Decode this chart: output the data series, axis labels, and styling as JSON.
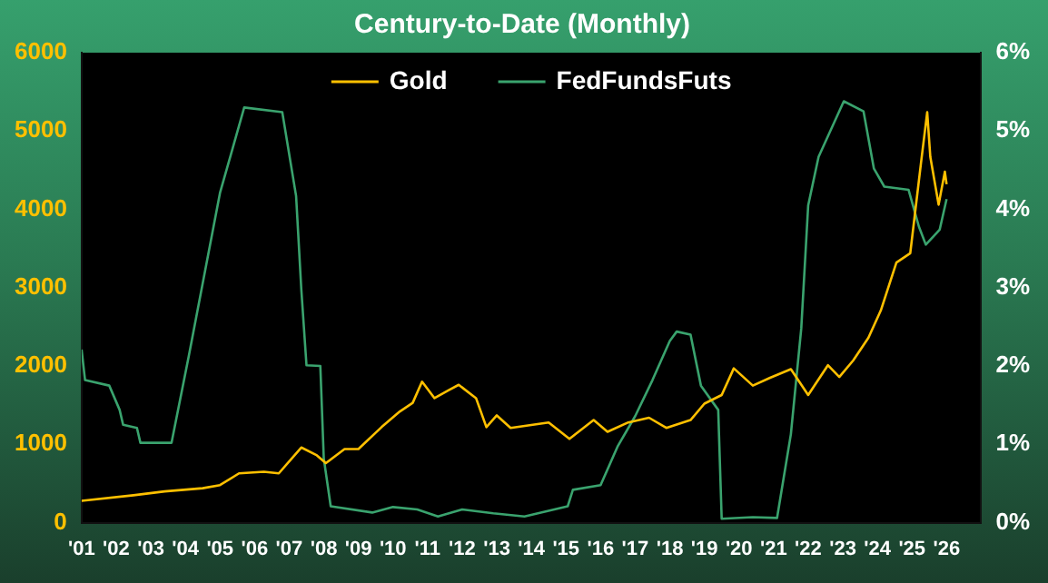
{
  "chart_data": {
    "type": "line",
    "title": "Century-to-Date (Monthly)",
    "marker": "none",
    "legend": "top",
    "xlim": [
      2001,
      2027
    ],
    "xticks": [
      {
        "value": 2001,
        "label": "'01"
      },
      {
        "value": 2002,
        "label": "'02"
      },
      {
        "value": 2003,
        "label": "'03"
      },
      {
        "value": 2004,
        "label": "'04"
      },
      {
        "value": 2005,
        "label": "'05"
      },
      {
        "value": 2006,
        "label": "'06"
      },
      {
        "value": 2007,
        "label": "'07"
      },
      {
        "value": 2008,
        "label": "'08"
      },
      {
        "value": 2009,
        "label": "'09"
      },
      {
        "value": 2010,
        "label": "'10"
      },
      {
        "value": 2011,
        "label": "'11"
      },
      {
        "value": 2012,
        "label": "'12"
      },
      {
        "value": 2013,
        "label": "'13"
      },
      {
        "value": 2014,
        "label": "'14"
      },
      {
        "value": 2015,
        "label": "'15"
      },
      {
        "value": 2016,
        "label": "'16"
      },
      {
        "value": 2017,
        "label": "'17"
      },
      {
        "value": 2018,
        "label": "'18"
      },
      {
        "value": 2019,
        "label": "'19"
      },
      {
        "value": 2020,
        "label": "'20"
      },
      {
        "value": 2021,
        "label": "'21"
      },
      {
        "value": 2022,
        "label": "'22"
      },
      {
        "value": 2023,
        "label": "'23"
      },
      {
        "value": 2024,
        "label": "'24"
      },
      {
        "value": 2025,
        "label": "'25"
      },
      {
        "value": 2026,
        "label": "'26"
      }
    ],
    "ylim": [
      0,
      6000
    ],
    "yticks": [
      0,
      1000,
      2000,
      3000,
      4000,
      5000,
      6000
    ],
    "y2lim": [
      0,
      6
    ],
    "y2ticks": [
      {
        "value": 0,
        "label": "0%"
      },
      {
        "value": 1,
        "label": "1%"
      },
      {
        "value": 2,
        "label": "2%"
      },
      {
        "value": 3,
        "label": "3%"
      },
      {
        "value": 4,
        "label": "4%"
      },
      {
        "value": 5,
        "label": "5%"
      },
      {
        "value": 6,
        "label": "6%"
      }
    ],
    "series": [
      {
        "name": "Gold",
        "color": "#ffc000",
        "x": [
          2001.0,
          2002.5,
          2003.4,
          2004.5,
          2005.0,
          2005.55,
          2006.27,
          2006.7,
          2007.35,
          2007.8,
          2008.06,
          2008.6,
          2009.0,
          2009.67,
          2010.2,
          2010.57,
          2010.84,
          2011.2,
          2011.6,
          2011.9,
          2012.4,
          2012.7,
          2013.0,
          2013.4,
          2014.5,
          2015.1,
          2015.8,
          2016.2,
          2016.8,
          2017.4,
          2017.9,
          2018.6,
          2019.0,
          2019.5,
          2019.85,
          2020.4,
          2020.9,
          2021.5,
          2022.0,
          2022.57,
          2022.9,
          2023.3,
          2023.74,
          2024.1,
          2024.55,
          2024.95,
          2025.26,
          2025.44,
          2025.53,
          2025.77,
          2025.95,
          2026.0
        ],
        "values": [
          280,
          350,
          400,
          440,
          480,
          630,
          650,
          630,
          960,
          860,
          760,
          940,
          940,
          1220,
          1420,
          1530,
          1800,
          1590,
          1690,
          1760,
          1590,
          1220,
          1370,
          1210,
          1280,
          1070,
          1310,
          1160,
          1280,
          1340,
          1210,
          1310,
          1520,
          1630,
          1970,
          1750,
          1850,
          1960,
          1630,
          2010,
          1860,
          2070,
          2360,
          2710,
          3320,
          3440,
          4590,
          5240,
          4670,
          4060,
          4480,
          4320
        ]
      },
      {
        "name": "FedFundsFuts",
        "color": "#3aa36e",
        "axis": "y2",
        "x": [
          2001.0,
          2001.1,
          2001.8,
          2002.1,
          2002.2,
          2002.6,
          2002.7,
          2003.6,
          2004.1,
          2005.0,
          2005.7,
          2006.8,
          2007.2,
          2007.35,
          2007.5,
          2007.9,
          2008.0,
          2008.2,
          2009.4,
          2010.0,
          2010.7,
          2011.3,
          2012.0,
          2012.9,
          2013.8,
          2015.05,
          2015.2,
          2016.0,
          2016.5,
          2017.0,
          2017.5,
          2018.0,
          2018.2,
          2018.6,
          2018.9,
          2019.4,
          2019.5,
          2020.4,
          2021.1,
          2021.5,
          2021.8,
          2022.0,
          2022.3,
          2023.03,
          2023.6,
          2023.9,
          2024.2,
          2024.9,
          2025.2,
          2025.4,
          2025.8,
          2026.0
        ],
        "values": [
          2.21,
          1.82,
          1.75,
          1.44,
          1.25,
          1.21,
          1.02,
          1.02,
          2.13,
          4.21,
          5.3,
          5.24,
          4.17,
          2.98,
          2.01,
          2.0,
          0.82,
          0.21,
          0.13,
          0.2,
          0.17,
          0.08,
          0.17,
          0.12,
          0.08,
          0.21,
          0.42,
          0.48,
          0.98,
          1.36,
          1.82,
          2.32,
          2.44,
          2.4,
          1.75,
          1.44,
          0.05,
          0.07,
          0.06,
          1.13,
          2.48,
          4.05,
          4.67,
          5.38,
          5.25,
          4.52,
          4.29,
          4.25,
          3.78,
          3.55,
          3.74,
          4.13
        ]
      }
    ]
  }
}
